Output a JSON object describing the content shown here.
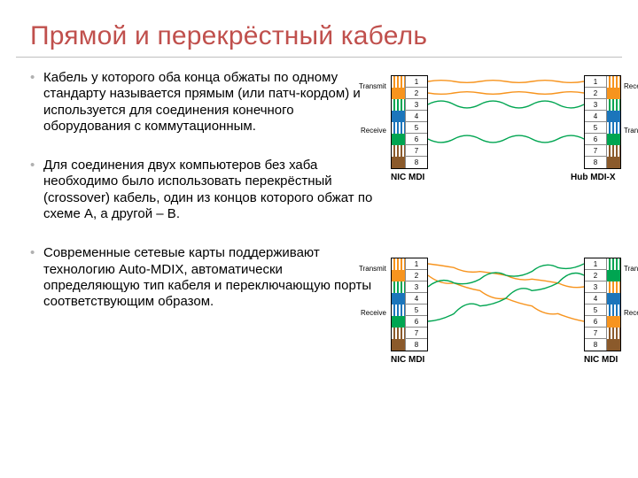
{
  "title": "Прямой и перекрёстный кабель",
  "bullets": [
    "Кабель у которого оба конца обжаты по одному стандарту называется прямым (или патч-кордом) и используется для соединения конечного оборудования с коммутационным.",
    "Для соединения двух компьютеров без хаба необходимо было использовать перекрёстный (crossover) кабель, один из концов которого обжат по схеме A, а другой – B.",
    "Современные сетевые карты поддерживают технологию Auto-MDIX, автоматически определяющую тип кабеля и переключающую порты соответствующим образом."
  ],
  "colors": {
    "title": "#c0504d",
    "rule": "#bfbfbf",
    "bullet_marker": "#b0b0b0",
    "text": "#000000",
    "bg": "#ffffff"
  },
  "pin_colors": {
    "orange_stripe": "repeating-linear-gradient(90deg,#ffffff 0 2px,#f7941e 2px 4px)",
    "orange": "#f7941e",
    "green_stripe": "repeating-linear-gradient(90deg,#ffffff 0 2px,#00a551 2px 4px)",
    "green": "#00a551",
    "blue": "#1b75bb",
    "blue_stripe": "repeating-linear-gradient(90deg,#ffffff 0 2px,#1b75bb 2px 4px)",
    "brown_stripe": "repeating-linear-gradient(90deg,#ffffff 0 2px,#8b5a2b 2px 4px)",
    "brown": "#8b5a2b"
  },
  "diagram1": {
    "left_caption": "NIC MDI",
    "right_caption": "Hub MDI-X",
    "left_side": {
      "top": "Transmit",
      "bottom": "Receive"
    },
    "right_side": {
      "top": "Receive",
      "bottom": "Transmit"
    },
    "left_pins": [
      "orange_stripe",
      "orange",
      "green_stripe",
      "blue",
      "blue_stripe",
      "green",
      "brown_stripe",
      "brown"
    ],
    "right_pins": [
      "orange_stripe",
      "orange",
      "green_stripe",
      "blue",
      "blue_stripe",
      "green",
      "brown_stripe",
      "brown"
    ],
    "wires": [
      {
        "from": 1,
        "to": 1,
        "stroke": "#f7941e",
        "twist": 2
      },
      {
        "from": 2,
        "to": 2,
        "stroke": "#f7941e",
        "twist": 1
      },
      {
        "from": 3,
        "to": 3,
        "stroke": "#00a551",
        "twist": 6
      },
      {
        "from": 6,
        "to": 6,
        "stroke": "#00a551",
        "twist": 3
      }
    ]
  },
  "diagram2": {
    "left_caption": "NIC MDI",
    "right_caption": "NIC MDI",
    "left_side": {
      "top": "Transmit",
      "bottom": "Receive"
    },
    "right_side": {
      "top": "Transmit",
      "bottom": "Receive"
    },
    "left_pins": [
      "orange_stripe",
      "orange",
      "green_stripe",
      "blue",
      "blue_stripe",
      "green",
      "brown_stripe",
      "brown"
    ],
    "right_pins": [
      "green_stripe",
      "green",
      "orange_stripe",
      "blue",
      "blue_stripe",
      "orange",
      "brown_stripe",
      "brown"
    ],
    "wires": [
      {
        "from": 1,
        "to": 3,
        "stroke": "#f7941e",
        "twist": 2
      },
      {
        "from": 2,
        "to": 6,
        "stroke": "#f7941e",
        "twist": 1
      },
      {
        "from": 3,
        "to": 1,
        "stroke": "#00a551",
        "twist": 6
      },
      {
        "from": 6,
        "to": 2,
        "stroke": "#00a551",
        "twist": 3
      }
    ]
  }
}
